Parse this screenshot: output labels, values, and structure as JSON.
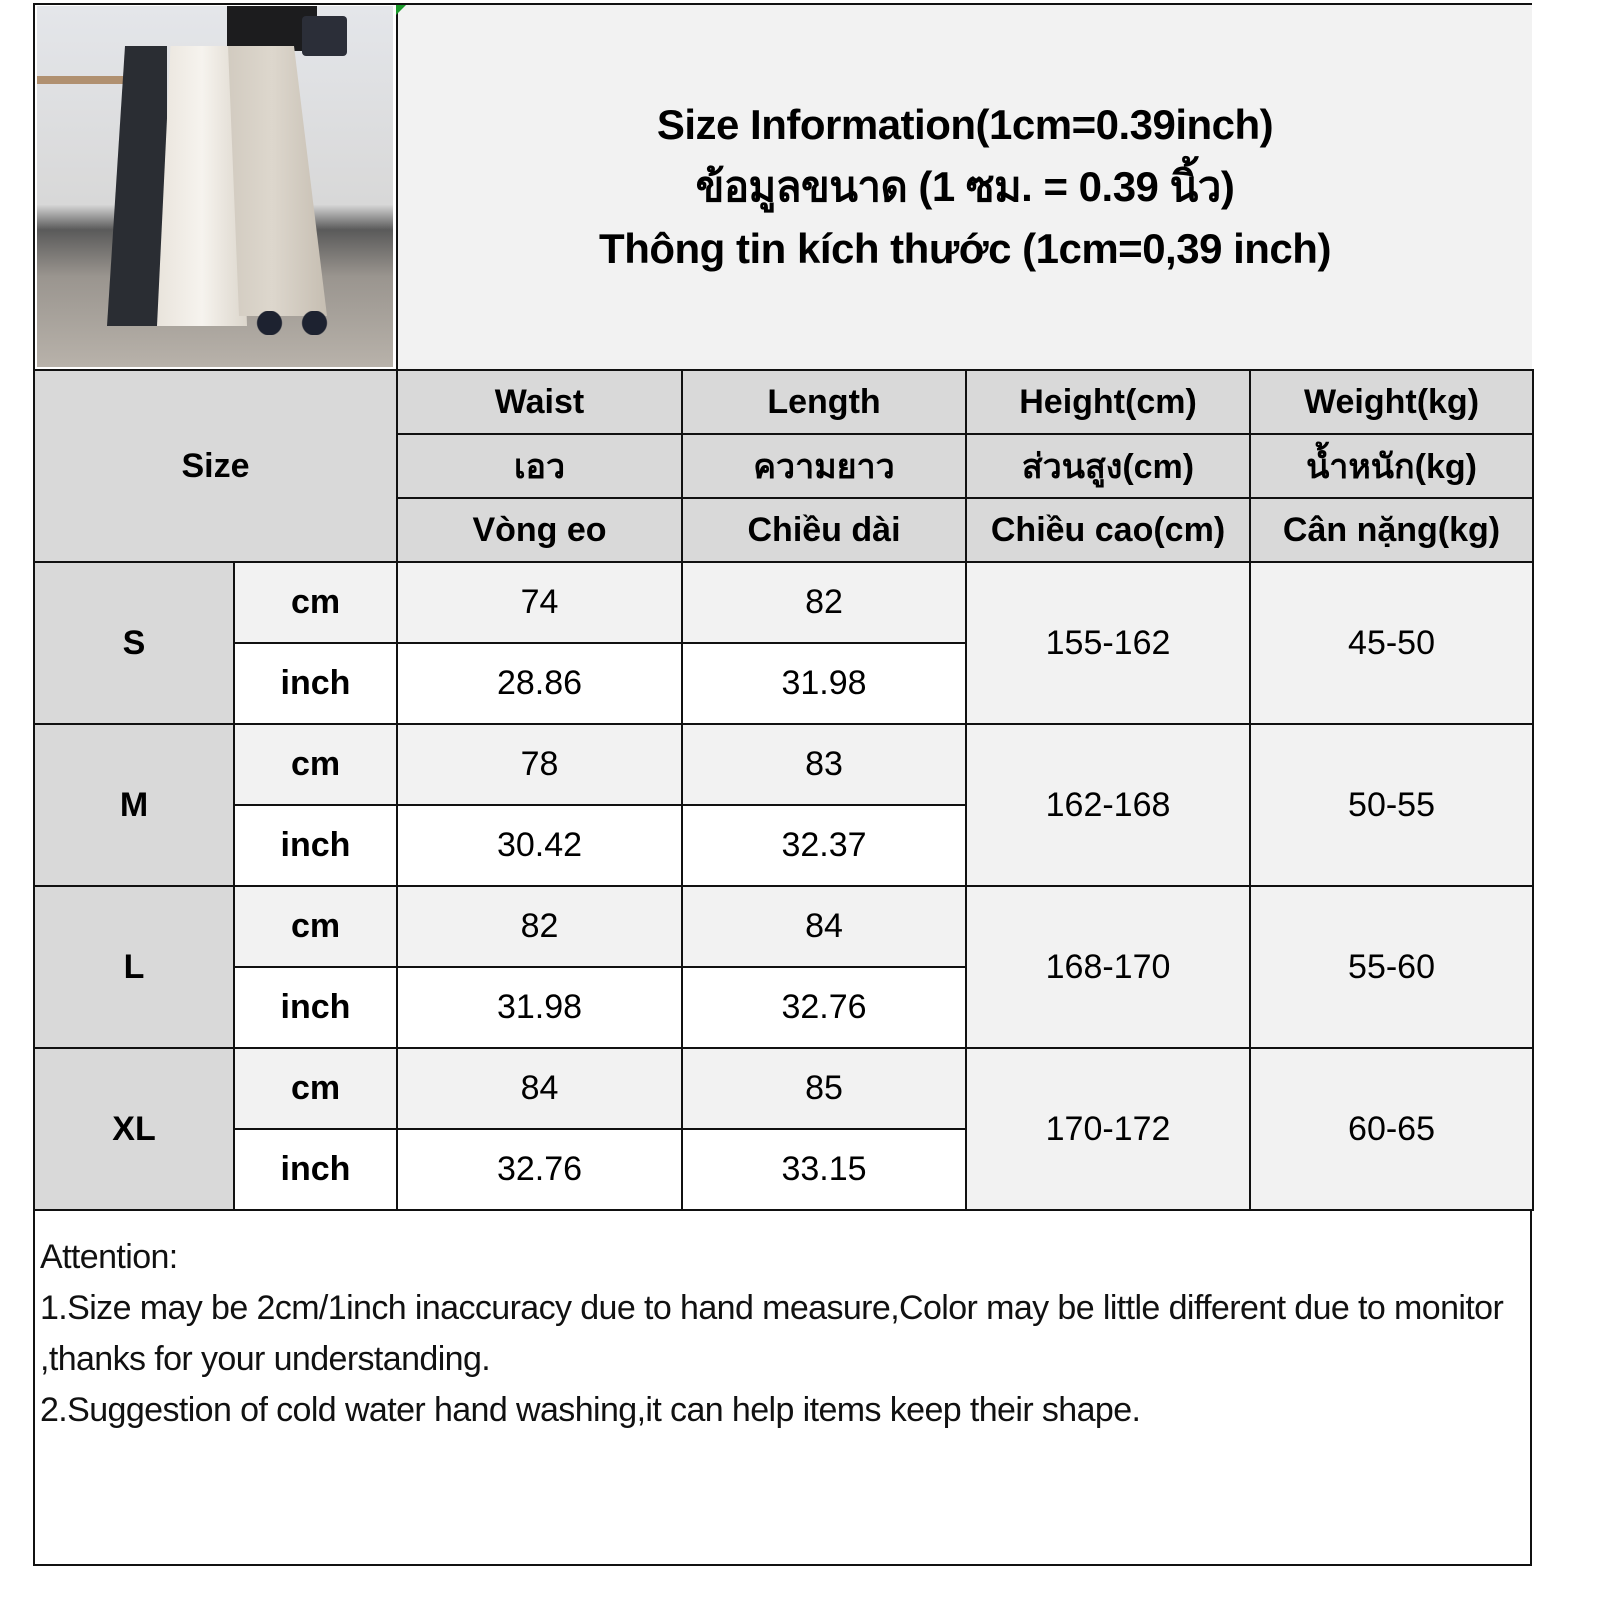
{
  "title": {
    "lines": [
      "Size Information(1cm=0.39inch)",
      "ข้อมูลขนาด (1 ซม. = 0.39 นิ้ว)",
      "Thông tin kích thước (1cm=0,39 inch)"
    ]
  },
  "photo": {
    "icon": "product-photo-skirts"
  },
  "table": {
    "size_header": "Size",
    "columns": [
      {
        "en": "Waist",
        "th": "เอว",
        "vi": "Vòng eo"
      },
      {
        "en": "Length",
        "th": "ความยาว",
        "vi": "Chiều dài"
      },
      {
        "en": "Height(cm)",
        "th": "ส่วนสูง(cm)",
        "vi": "Chiều cao(cm)"
      },
      {
        "en": "Weight(kg)",
        "th": "น้ำหนัก(kg)",
        "vi": "Cân nặng(kg)"
      }
    ],
    "unit_cm": "cm",
    "unit_inch": "inch",
    "rows": [
      {
        "size": "S",
        "cm": [
          "74",
          "82"
        ],
        "inch": [
          "28.86",
          "31.98"
        ],
        "height": "155-162",
        "weight": "45-50"
      },
      {
        "size": "M",
        "cm": [
          "78",
          "83"
        ],
        "inch": [
          "30.42",
          "32.37"
        ],
        "height": "162-168",
        "weight": "50-55"
      },
      {
        "size": "L",
        "cm": [
          "82",
          "84"
        ],
        "inch": [
          "31.98",
          "32.76"
        ],
        "height": "168-170",
        "weight": "55-60"
      },
      {
        "size": "XL",
        "cm": [
          "84",
          "85"
        ],
        "inch": [
          "32.76",
          "33.15"
        ],
        "height": "170-172",
        "weight": "60-65"
      }
    ]
  },
  "notes": {
    "heading": "Attention:",
    "items": [
      "1.Size may be 2cm/1inch inaccuracy due to hand measure,Color may be little different due to monitor ,thanks for your understanding.",
      "2.Suggestion of cold water hand washing,it can help items keep their shape."
    ]
  },
  "colors": {
    "header_bg": "#d9d9d9",
    "cm_row_bg": "#f2f2f2",
    "inch_row_bg": "#ffffff",
    "border": "#111111"
  }
}
